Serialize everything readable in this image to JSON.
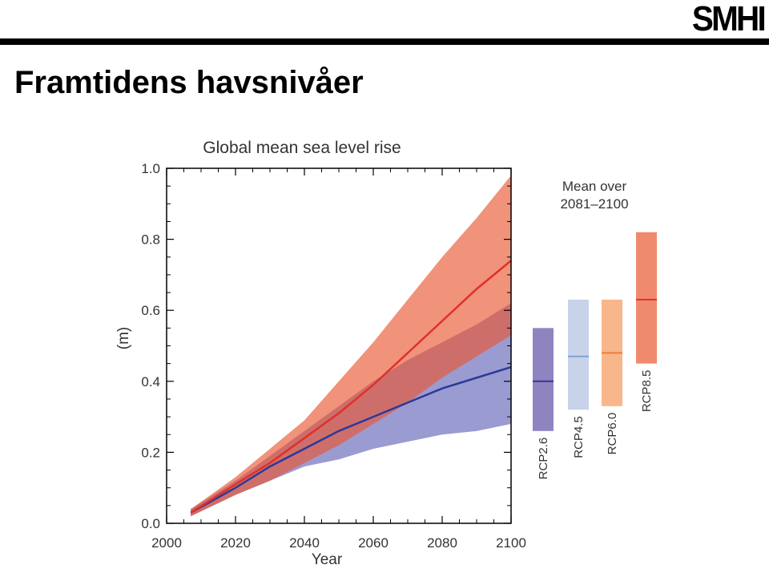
{
  "header": {
    "logo_text": "SMHI",
    "title": "Framtidens havsnivåer"
  },
  "chart_data": [
    {
      "type": "area",
      "title": "Global mean sea level rise",
      "xlabel": "Year",
      "ylabel": "(m)",
      "xlim": [
        2000,
        2100
      ],
      "ylim": [
        0.0,
        1.0
      ],
      "x_ticks": [
        2000,
        2020,
        2040,
        2060,
        2080,
        2100
      ],
      "y_ticks": [
        0.0,
        0.2,
        0.4,
        0.6,
        0.8,
        1.0
      ],
      "y_tick_labels": [
        "0.0",
        "0.2",
        "0.4",
        "0.6",
        "0.8",
        "1.0"
      ],
      "grid": false,
      "colors": {
        "blue_band": "#9a9bd1",
        "blue_line": "#2b3a99",
        "red_band": "#f0866b",
        "red_line": "#e0302a",
        "overlap_band": "#c96a6a"
      },
      "series": [
        {
          "color_key": "blue",
          "x": [
            2007,
            2020,
            2030,
            2040,
            2050,
            2060,
            2070,
            2080,
            2090,
            2100
          ],
          "mean": [
            0.03,
            0.1,
            0.16,
            0.21,
            0.26,
            0.3,
            0.34,
            0.38,
            0.41,
            0.44
          ],
          "lower": [
            0.02,
            0.08,
            0.12,
            0.16,
            0.18,
            0.21,
            0.23,
            0.25,
            0.26,
            0.28
          ],
          "upper": [
            0.04,
            0.12,
            0.19,
            0.26,
            0.33,
            0.4,
            0.46,
            0.51,
            0.56,
            0.62
          ]
        },
        {
          "color_key": "red",
          "x": [
            2007,
            2020,
            2030,
            2040,
            2050,
            2060,
            2070,
            2080,
            2090,
            2100
          ],
          "mean": [
            0.03,
            0.11,
            0.17,
            0.24,
            0.31,
            0.39,
            0.48,
            0.57,
            0.66,
            0.74
          ],
          "lower": [
            0.02,
            0.08,
            0.12,
            0.17,
            0.22,
            0.28,
            0.34,
            0.41,
            0.47,
            0.53
          ],
          "upper": [
            0.04,
            0.13,
            0.21,
            0.29,
            0.4,
            0.51,
            0.63,
            0.75,
            0.86,
            0.98
          ]
        }
      ]
    },
    {
      "type": "bar",
      "title": "Mean over 2081–2100",
      "title_lines": [
        "Mean over",
        "2081–2100"
      ],
      "ylim": [
        0.0,
        1.0
      ],
      "bars": [
        {
          "name": "RCP2.6",
          "lower": 0.26,
          "upper": 0.55,
          "mean": 0.4,
          "color": "#8f84c0",
          "line": "#3d3390"
        },
        {
          "name": "RCP4.5",
          "lower": 0.32,
          "upper": 0.63,
          "mean": 0.47,
          "color": "#c8d3ea",
          "line": "#7ea3d6"
        },
        {
          "name": "RCP6.0",
          "lower": 0.33,
          "upper": 0.63,
          "mean": 0.48,
          "color": "#f8b68a",
          "line": "#ee7d3a"
        },
        {
          "name": "RCP8.5",
          "lower": 0.45,
          "upper": 0.82,
          "mean": 0.63,
          "color": "#f08a6f",
          "line": "#e0302a"
        }
      ]
    }
  ]
}
